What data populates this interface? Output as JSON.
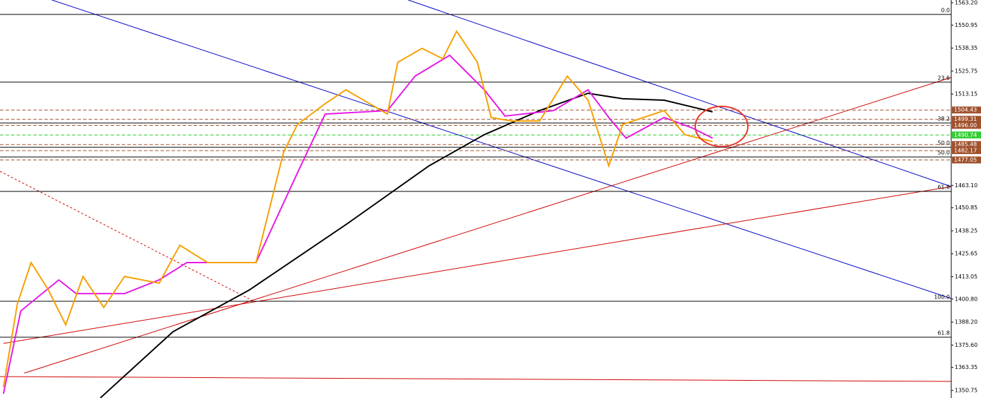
{
  "chart_data": {
    "type": "line",
    "yticks": [
      {
        "value": 1563.2,
        "label": "1563.20"
      },
      {
        "value": 1550.95,
        "label": "1550.95"
      },
      {
        "value": 1538.35,
        "label": "1538.35"
      },
      {
        "value": 1525.75,
        "label": "1525.75"
      },
      {
        "value": 1513.15,
        "label": "1513.15"
      },
      {
        "value": 1463.1,
        "label": "1463.10"
      },
      {
        "value": 1450.85,
        "label": "1450.85"
      },
      {
        "value": 1438.25,
        "label": "1438.25"
      },
      {
        "value": 1425.65,
        "label": "1425.65"
      },
      {
        "value": 1413.05,
        "label": "1413.05"
      },
      {
        "value": 1400.8,
        "label": "1400.80"
      },
      {
        "value": 1388.2,
        "label": "1388.20"
      },
      {
        "value": 1375.6,
        "label": "1375.60"
      },
      {
        "value": 1363.35,
        "label": "1363.35"
      },
      {
        "value": 1350.75,
        "label": "1350.75"
      }
    ],
    "ylim": [
      1350.75,
      1563.2
    ],
    "xlim": [
      0,
      275
    ],
    "series": [
      {
        "color": "#000000",
        "x": [
          29,
          50,
          72,
          100,
          124,
          140,
          156,
          170,
          180,
          192,
          206
        ],
        "values": [
          1346.6,
          1382.9,
          1405.7,
          1441.6,
          1473.8,
          1490.9,
          1504.1,
          1513.6,
          1510.6,
          1509.8,
          1503.4
        ]
      },
      {
        "color": "#e619e6",
        "x": [
          1,
          6,
          17,
          22,
          36,
          46,
          54,
          74,
          86,
          94,
          112,
          120,
          130,
          140,
          146,
          160,
          170,
          176,
          181,
          192,
          200,
          206
        ],
        "values": [
          1348.9,
          1394.3,
          1411.3,
          1403.8,
          1403.8,
          1411.3,
          1420.8,
          1420.8,
          1470.0,
          1502.2,
          1504.1,
          1523.0,
          1534.4,
          1515.5,
          1501.1,
          1504.1,
          1515.5,
          1500.3,
          1489.0,
          1500.3,
          1494.7,
          1489.0
        ]
      },
      {
        "color": "#f5a000",
        "x": [
          1,
          5,
          9,
          14,
          19,
          24,
          30,
          36,
          46,
          52,
          60,
          74,
          82,
          86,
          94,
          100,
          112,
          115,
          122,
          128,
          132,
          138,
          142,
          148,
          156,
          164,
          170,
          176,
          180,
          192,
          198,
          206
        ],
        "values": [
          1352.6,
          1398.1,
          1420.8,
          1405.7,
          1386.7,
          1413.2,
          1396.2,
          1413.2,
          1409.5,
          1430.3,
          1420.8,
          1420.8,
          1481.4,
          1496.5,
          1507.9,
          1515.5,
          1502.2,
          1530.6,
          1538.2,
          1532.5,
          1547.6,
          1530.6,
          1500.3,
          1498.4,
          1498.4,
          1523.0,
          1509.8,
          1473.8,
          1496.5,
          1504.1,
          1490.9,
          1487.1
        ]
      }
    ],
    "levels": [
      {
        "label": "0.0",
        "value": 1556.8
      },
      {
        "label": "23.6",
        "value": 1519.7
      },
      {
        "label": "38.2",
        "value": 1497.3
      },
      {
        "label": "50.0",
        "value": 1484.0
      },
      {
        "label": "50.0",
        "value": 1478.7
      },
      {
        "label": "61.8",
        "value": 1459.8
      },
      {
        "label": "100.0",
        "value": 1399.6
      },
      {
        "label": "61.8",
        "value": 1379.9
      }
    ],
    "price_tags": [
      {
        "value": 1504.43,
        "label": "1504.43",
        "color": "#a0522d"
      },
      {
        "value": 1499.31,
        "label": "1499.31",
        "color": "#a0522d"
      },
      {
        "value": 1496.0,
        "label": "1496.00",
        "color": "#a0522d"
      },
      {
        "value": 1490.74,
        "label": "1490.74",
        "color": "#32cd32"
      },
      {
        "value": 1485.48,
        "label": "1485.48",
        "color": "#a0522d"
      },
      {
        "value": 1482.17,
        "label": "1482.17",
        "color": "#a0522d"
      },
      {
        "value": 1477.05,
        "label": "1477.05",
        "color": "#a0522d"
      }
    ]
  }
}
